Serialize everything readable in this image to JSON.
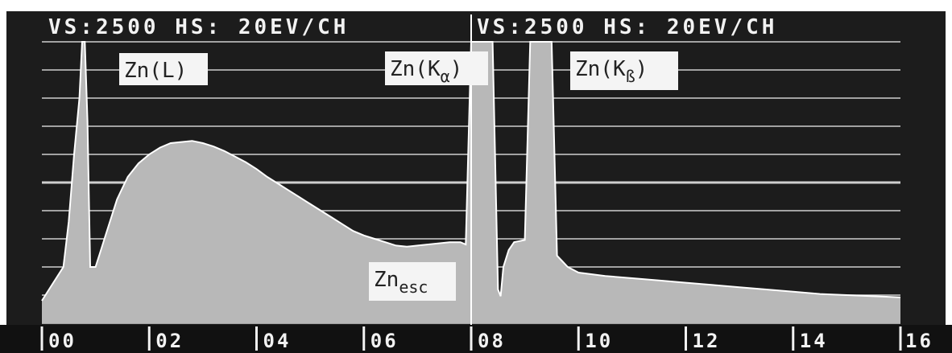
{
  "chart_data": {
    "type": "area",
    "header_left": "VS:2500  HS: 20EV/CH",
    "header_right": "VS:2500  HS: 20EV/CH",
    "xlim": [
      0,
      16
    ],
    "ylim": [
      0,
      2500
    ],
    "grid": true,
    "x_ticks": [
      "00",
      "02",
      "04",
      "06",
      "08",
      "10",
      "12",
      "14",
      "16"
    ],
    "annotations": [
      {
        "id": "znl",
        "text": "Zn(L)",
        "x": 1.5
      },
      {
        "id": "znka",
        "text": "Zn(K",
        "sub": "α",
        "close": ")",
        "x": 8.6
      },
      {
        "id": "znkb",
        "text": "Zn(K",
        "sub": "ß",
        "close": ")",
        "x": 9.6
      },
      {
        "id": "znesc",
        "text": "Zn",
        "sub": "esc",
        "x": 6.6
      }
    ],
    "series": [
      {
        "x": [
          0.0,
          0.2,
          0.4,
          0.5,
          0.6,
          0.7,
          0.75,
          0.8,
          0.85,
          0.9,
          1.0,
          1.1,
          1.2,
          1.3,
          1.4,
          1.5,
          1.6,
          1.8,
          2.0,
          2.2,
          2.4,
          2.6,
          2.8,
          3.0,
          3.2,
          3.4,
          3.6,
          3.8,
          4.0,
          4.2,
          4.4,
          4.6,
          4.8,
          5.0,
          5.2,
          5.4,
          5.6,
          5.8,
          6.0,
          6.2,
          6.4,
          6.6,
          6.8,
          7.0,
          7.2,
          7.4,
          7.6,
          7.8,
          7.9,
          8.0,
          8.1,
          8.2,
          8.3,
          8.4,
          8.5,
          8.55,
          8.6,
          8.7,
          8.8,
          8.9,
          9.0,
          9.1,
          9.2,
          9.3,
          9.4,
          9.5,
          9.6,
          9.7,
          9.8,
          10.0,
          10.5,
          11.0,
          11.5,
          12.0,
          12.5,
          13.0,
          13.5,
          14.0,
          14.5,
          15.0,
          15.5,
          16.0
        ],
        "y": [
          200,
          350,
          500,
          900,
          1500,
          2000,
          2500,
          2500,
          1800,
          500,
          500,
          650,
          800,
          950,
          1100,
          1200,
          1300,
          1420,
          1500,
          1560,
          1600,
          1610,
          1620,
          1600,
          1570,
          1530,
          1480,
          1430,
          1370,
          1300,
          1240,
          1180,
          1120,
          1060,
          1000,
          940,
          880,
          820,
          780,
          750,
          720,
          690,
          680,
          690,
          700,
          710,
          720,
          720,
          700,
          2500,
          2500,
          2500,
          2500,
          2500,
          300,
          240,
          500,
          650,
          720,
          730,
          740,
          2500,
          2500,
          2500,
          2500,
          2500,
          600,
          550,
          500,
          450,
          420,
          400,
          380,
          360,
          340,
          320,
          300,
          280,
          260,
          250,
          240,
          230
        ]
      }
    ]
  }
}
